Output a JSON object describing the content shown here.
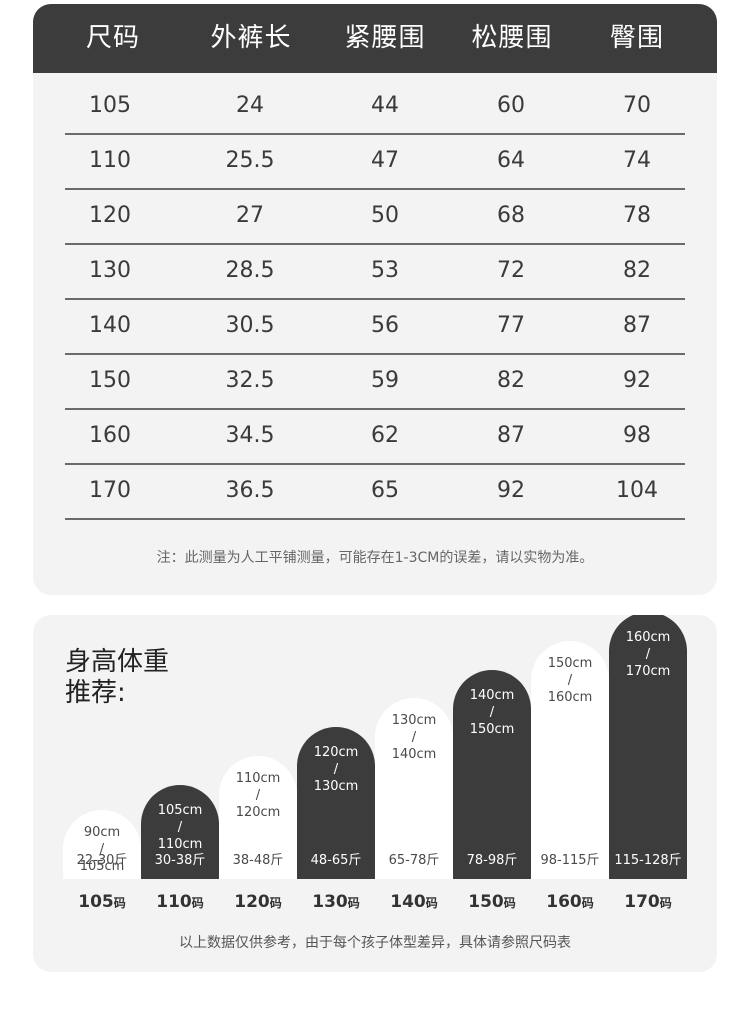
{
  "size_table": {
    "headers": [
      "尺码",
      "外裤长",
      "紧腰围",
      "松腰围",
      "臀围"
    ],
    "rows": [
      [
        "105",
        "24",
        "44",
        "60",
        "70"
      ],
      [
        "110",
        "25.5",
        "47",
        "64",
        "74"
      ],
      [
        "120",
        "27",
        "50",
        "68",
        "78"
      ],
      [
        "130",
        "28.5",
        "53",
        "72",
        "82"
      ],
      [
        "140",
        "30.5",
        "56",
        "77",
        "87"
      ],
      [
        "150",
        "32.5",
        "59",
        "82",
        "92"
      ],
      [
        "160",
        "34.5",
        "62",
        "87",
        "98"
      ],
      [
        "170",
        "36.5",
        "65",
        "92",
        "104"
      ]
    ],
    "note": "注：此测量为人工平铺测量，可能存在1-3CM的误差，请以实物为准。"
  },
  "recommendation": {
    "title_line1": "身高体重",
    "title_line2": "推荐:",
    "size_suffix": "码",
    "items": [
      {
        "size": "105",
        "height_from": "90cm",
        "height_sep": "/",
        "height_to": "105cm",
        "weight": "22-30斤",
        "style": "light",
        "level": 0.2
      },
      {
        "size": "110",
        "height_from": "105cm",
        "height_sep": "/",
        "height_to": "110cm",
        "weight": "30-38斤",
        "style": "dark",
        "level": 0.27
      },
      {
        "size": "120",
        "height_from": "110cm",
        "height_sep": "/",
        "height_to": "120cm",
        "weight": "38-48斤",
        "style": "light",
        "level": 0.35
      },
      {
        "size": "130",
        "height_from": "120cm",
        "height_sep": "/",
        "height_to": "130cm",
        "weight": "48-65斤",
        "style": "dark",
        "level": 0.43
      },
      {
        "size": "140",
        "height_from": "130cm",
        "height_sep": "/",
        "height_to": "140cm",
        "weight": "65-78斤",
        "style": "light",
        "level": 0.51
      },
      {
        "size": "150",
        "height_from": "140cm",
        "height_sep": "/",
        "height_to": "150cm",
        "weight": "78-98斤",
        "style": "dark",
        "level": 0.59
      },
      {
        "size": "160",
        "height_from": "150cm",
        "height_sep": "/",
        "height_to": "160cm",
        "weight": "98-115斤",
        "style": "light",
        "level": 0.67
      },
      {
        "size": "170",
        "height_from": "160cm",
        "height_sep": "/",
        "height_to": "170cm",
        "weight": "115-128斤",
        "style": "dark",
        "level": 0.75
      }
    ],
    "note": "以上数据仅供参考，由于每个孩子体型差异，具体请参照尺码表"
  },
  "colors": {
    "dark": "#3c3c3c",
    "card_bg": "#f3f3f3",
    "light_bar": "#ffffff"
  }
}
